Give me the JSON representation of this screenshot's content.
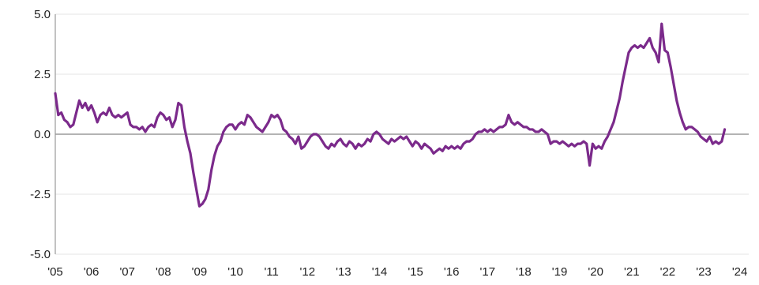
{
  "chart_data": {
    "type": "line",
    "title": "",
    "xlabel": "",
    "ylabel": "",
    "ylim": [
      -5.0,
      5.0
    ],
    "xlim": [
      "2005-01",
      "2024-04"
    ],
    "grid": "horizontal",
    "zero_line": true,
    "legend": "none",
    "colors": {
      "line": "#7b2a8b",
      "grid": "#e6e6e6",
      "zero_line": "#9a9a9a",
      "axis": "#9a9a9a"
    },
    "y_ticks": [
      {
        "value": 5.0,
        "label": "5.0"
      },
      {
        "value": 2.5,
        "label": "2.5"
      },
      {
        "value": 0.0,
        "label": "0.0"
      },
      {
        "value": -2.5,
        "label": "-2.5"
      },
      {
        "value": -5.0,
        "label": "-5.0"
      }
    ],
    "x_ticks": [
      {
        "value": 2005,
        "label": "'05"
      },
      {
        "value": 2006,
        "label": "'06"
      },
      {
        "value": 2007,
        "label": "'07"
      },
      {
        "value": 2008,
        "label": "'08"
      },
      {
        "value": 2009,
        "label": "'09"
      },
      {
        "value": 2010,
        "label": "'10"
      },
      {
        "value": 2011,
        "label": "'11"
      },
      {
        "value": 2012,
        "label": "'12"
      },
      {
        "value": 2013,
        "label": "'13"
      },
      {
        "value": 2014,
        "label": "'14"
      },
      {
        "value": 2015,
        "label": "'15"
      },
      {
        "value": 2016,
        "label": "'16"
      },
      {
        "value": 2017,
        "label": "'17"
      },
      {
        "value": 2018,
        "label": "'18"
      },
      {
        "value": 2019,
        "label": "'19"
      },
      {
        "value": 2020,
        "label": "'20"
      },
      {
        "value": 2021,
        "label": "'21"
      },
      {
        "value": 2022,
        "label": "'22"
      },
      {
        "value": 2023,
        "label": "'23"
      },
      {
        "value": 2024,
        "label": "'24"
      }
    ],
    "series": [
      {
        "points": [
          [
            "2005-01",
            1.7
          ],
          [
            "2005-02",
            0.8
          ],
          [
            "2005-03",
            0.9
          ],
          [
            "2005-04",
            0.6
          ],
          [
            "2005-05",
            0.5
          ],
          [
            "2005-06",
            0.3
          ],
          [
            "2005-07",
            0.4
          ],
          [
            "2005-08",
            0.9
          ],
          [
            "2005-09",
            1.4
          ],
          [
            "2005-10",
            1.1
          ],
          [
            "2005-11",
            1.3
          ],
          [
            "2005-12",
            1.0
          ],
          [
            "2006-01",
            1.2
          ],
          [
            "2006-02",
            0.9
          ],
          [
            "2006-03",
            0.5
          ],
          [
            "2006-04",
            0.8
          ],
          [
            "2006-05",
            0.9
          ],
          [
            "2006-06",
            0.8
          ],
          [
            "2006-07",
            1.1
          ],
          [
            "2006-08",
            0.8
          ],
          [
            "2006-09",
            0.7
          ],
          [
            "2006-10",
            0.8
          ],
          [
            "2006-11",
            0.7
          ],
          [
            "2006-12",
            0.8
          ],
          [
            "2007-01",
            0.9
          ],
          [
            "2007-02",
            0.4
          ],
          [
            "2007-03",
            0.3
          ],
          [
            "2007-04",
            0.3
          ],
          [
            "2007-05",
            0.2
          ],
          [
            "2007-06",
            0.3
          ],
          [
            "2007-07",
            0.1
          ],
          [
            "2007-08",
            0.3
          ],
          [
            "2007-09",
            0.4
          ],
          [
            "2007-10",
            0.3
          ],
          [
            "2007-11",
            0.7
          ],
          [
            "2007-12",
            0.9
          ],
          [
            "2008-01",
            0.8
          ],
          [
            "2008-02",
            0.6
          ],
          [
            "2008-03",
            0.7
          ],
          [
            "2008-04",
            0.3
          ],
          [
            "2008-05",
            0.6
          ],
          [
            "2008-06",
            1.3
          ],
          [
            "2008-07",
            1.2
          ],
          [
            "2008-08",
            0.3
          ],
          [
            "2008-09",
            -0.3
          ],
          [
            "2008-10",
            -0.8
          ],
          [
            "2008-11",
            -1.6
          ],
          [
            "2008-12",
            -2.3
          ],
          [
            "2009-01",
            -3.0
          ],
          [
            "2009-02",
            -2.9
          ],
          [
            "2009-03",
            -2.7
          ],
          [
            "2009-04",
            -2.3
          ],
          [
            "2009-05",
            -1.5
          ],
          [
            "2009-06",
            -0.9
          ],
          [
            "2009-07",
            -0.5
          ],
          [
            "2009-08",
            -0.3
          ],
          [
            "2009-09",
            0.1
          ],
          [
            "2009-10",
            0.3
          ],
          [
            "2009-11",
            0.4
          ],
          [
            "2009-12",
            0.4
          ],
          [
            "2010-01",
            0.2
          ],
          [
            "2010-02",
            0.4
          ],
          [
            "2010-03",
            0.5
          ],
          [
            "2010-04",
            0.4
          ],
          [
            "2010-05",
            0.8
          ],
          [
            "2010-06",
            0.7
          ],
          [
            "2010-07",
            0.5
          ],
          [
            "2010-08",
            0.3
          ],
          [
            "2010-09",
            0.2
          ],
          [
            "2010-10",
            0.1
          ],
          [
            "2010-11",
            0.3
          ],
          [
            "2010-12",
            0.5
          ],
          [
            "2011-01",
            0.8
          ],
          [
            "2011-02",
            0.7
          ],
          [
            "2011-03",
            0.8
          ],
          [
            "2011-04",
            0.6
          ],
          [
            "2011-05",
            0.2
          ],
          [
            "2011-06",
            0.1
          ],
          [
            "2011-07",
            -0.1
          ],
          [
            "2011-08",
            -0.2
          ],
          [
            "2011-09",
            -0.4
          ],
          [
            "2011-10",
            -0.1
          ],
          [
            "2011-11",
            -0.6
          ],
          [
            "2011-12",
            -0.5
          ],
          [
            "2012-01",
            -0.3
          ],
          [
            "2012-02",
            -0.1
          ],
          [
            "2012-03",
            0.0
          ],
          [
            "2012-04",
            0.0
          ],
          [
            "2012-05",
            -0.1
          ],
          [
            "2012-06",
            -0.3
          ],
          [
            "2012-07",
            -0.5
          ],
          [
            "2012-08",
            -0.6
          ],
          [
            "2012-09",
            -0.4
          ],
          [
            "2012-10",
            -0.5
          ],
          [
            "2012-11",
            -0.3
          ],
          [
            "2012-12",
            -0.2
          ],
          [
            "2013-01",
            -0.4
          ],
          [
            "2013-02",
            -0.5
          ],
          [
            "2013-03",
            -0.3
          ],
          [
            "2013-04",
            -0.4
          ],
          [
            "2013-05",
            -0.6
          ],
          [
            "2013-06",
            -0.4
          ],
          [
            "2013-07",
            -0.5
          ],
          [
            "2013-08",
            -0.4
          ],
          [
            "2013-09",
            -0.2
          ],
          [
            "2013-10",
            -0.3
          ],
          [
            "2013-11",
            0.0
          ],
          [
            "2013-12",
            0.1
          ],
          [
            "2014-01",
            0.0
          ],
          [
            "2014-02",
            -0.2
          ],
          [
            "2014-03",
            -0.3
          ],
          [
            "2014-04",
            -0.4
          ],
          [
            "2014-05",
            -0.2
          ],
          [
            "2014-06",
            -0.3
          ],
          [
            "2014-07",
            -0.2
          ],
          [
            "2014-08",
            -0.1
          ],
          [
            "2014-09",
            -0.2
          ],
          [
            "2014-10",
            -0.1
          ],
          [
            "2014-11",
            -0.3
          ],
          [
            "2014-12",
            -0.5
          ],
          [
            "2015-01",
            -0.3
          ],
          [
            "2015-02",
            -0.4
          ],
          [
            "2015-03",
            -0.6
          ],
          [
            "2015-04",
            -0.4
          ],
          [
            "2015-05",
            -0.5
          ],
          [
            "2015-06",
            -0.6
          ],
          [
            "2015-07",
            -0.8
          ],
          [
            "2015-08",
            -0.7
          ],
          [
            "2015-09",
            -0.6
          ],
          [
            "2015-10",
            -0.7
          ],
          [
            "2015-11",
            -0.5
          ],
          [
            "2015-12",
            -0.6
          ],
          [
            "2016-01",
            -0.5
          ],
          [
            "2016-02",
            -0.6
          ],
          [
            "2016-03",
            -0.5
          ],
          [
            "2016-04",
            -0.6
          ],
          [
            "2016-05",
            -0.4
          ],
          [
            "2016-06",
            -0.3
          ],
          [
            "2016-07",
            -0.3
          ],
          [
            "2016-08",
            -0.2
          ],
          [
            "2016-09",
            0.0
          ],
          [
            "2016-10",
            0.1
          ],
          [
            "2016-11",
            0.1
          ],
          [
            "2016-12",
            0.2
          ],
          [
            "2017-01",
            0.1
          ],
          [
            "2017-02",
            0.2
          ],
          [
            "2017-03",
            0.1
          ],
          [
            "2017-04",
            0.2
          ],
          [
            "2017-05",
            0.3
          ],
          [
            "2017-06",
            0.3
          ],
          [
            "2017-07",
            0.4
          ],
          [
            "2017-08",
            0.8
          ],
          [
            "2017-09",
            0.5
          ],
          [
            "2017-10",
            0.4
          ],
          [
            "2017-11",
            0.5
          ],
          [
            "2017-12",
            0.4
          ],
          [
            "2018-01",
            0.3
          ],
          [
            "2018-02",
            0.3
          ],
          [
            "2018-03",
            0.2
          ],
          [
            "2018-04",
            0.2
          ],
          [
            "2018-05",
            0.1
          ],
          [
            "2018-06",
            0.1
          ],
          [
            "2018-07",
            0.2
          ],
          [
            "2018-08",
            0.1
          ],
          [
            "2018-09",
            0.0
          ],
          [
            "2018-10",
            -0.4
          ],
          [
            "2018-11",
            -0.3
          ],
          [
            "2018-12",
            -0.3
          ],
          [
            "2019-01",
            -0.4
          ],
          [
            "2019-02",
            -0.3
          ],
          [
            "2019-03",
            -0.4
          ],
          [
            "2019-04",
            -0.5
          ],
          [
            "2019-05",
            -0.4
          ],
          [
            "2019-06",
            -0.5
          ],
          [
            "2019-07",
            -0.4
          ],
          [
            "2019-08",
            -0.4
          ],
          [
            "2019-09",
            -0.3
          ],
          [
            "2019-10",
            -0.4
          ],
          [
            "2019-11",
            -1.3
          ],
          [
            "2019-12",
            -0.4
          ],
          [
            "2020-01",
            -0.6
          ],
          [
            "2020-02",
            -0.5
          ],
          [
            "2020-03",
            -0.6
          ],
          [
            "2020-04",
            -0.3
          ],
          [
            "2020-05",
            -0.1
          ],
          [
            "2020-06",
            0.2
          ],
          [
            "2020-07",
            0.5
          ],
          [
            "2020-08",
            1.0
          ],
          [
            "2020-09",
            1.5
          ],
          [
            "2020-10",
            2.2
          ],
          [
            "2020-11",
            2.8
          ],
          [
            "2020-12",
            3.4
          ],
          [
            "2021-01",
            3.6
          ],
          [
            "2021-02",
            3.7
          ],
          [
            "2021-03",
            3.6
          ],
          [
            "2021-04",
            3.7
          ],
          [
            "2021-05",
            3.6
          ],
          [
            "2021-06",
            3.8
          ],
          [
            "2021-07",
            4.0
          ],
          [
            "2021-08",
            3.6
          ],
          [
            "2021-09",
            3.4
          ],
          [
            "2021-10",
            3.0
          ],
          [
            "2021-11",
            4.6
          ],
          [
            "2021-12",
            3.5
          ],
          [
            "2022-01",
            3.4
          ],
          [
            "2022-02",
            2.8
          ],
          [
            "2022-03",
            2.1
          ],
          [
            "2022-04",
            1.4
          ],
          [
            "2022-05",
            0.9
          ],
          [
            "2022-06",
            0.5
          ],
          [
            "2022-07",
            0.2
          ],
          [
            "2022-08",
            0.3
          ],
          [
            "2022-09",
            0.3
          ],
          [
            "2022-10",
            0.2
          ],
          [
            "2022-11",
            0.1
          ],
          [
            "2022-12",
            -0.1
          ],
          [
            "2023-01",
            -0.2
          ],
          [
            "2023-02",
            -0.3
          ],
          [
            "2023-03",
            -0.1
          ],
          [
            "2023-04",
            -0.4
          ],
          [
            "2023-05",
            -0.3
          ],
          [
            "2023-06",
            -0.4
          ],
          [
            "2023-07",
            -0.3
          ],
          [
            "2023-08",
            0.2
          ]
        ]
      }
    ]
  }
}
